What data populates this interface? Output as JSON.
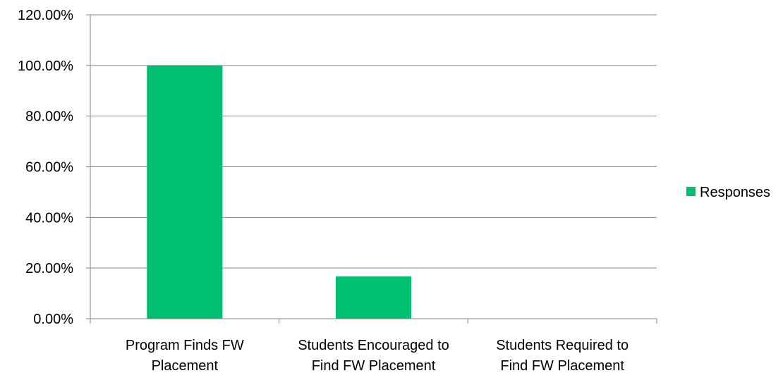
{
  "chart_data": {
    "type": "bar",
    "categories": [
      [
        "Program Finds FW",
        "Placement"
      ],
      [
        "Students Encouraged to",
        "Find FW Placement"
      ],
      [
        "Students Required to",
        "Find FW Placement"
      ]
    ],
    "series": [
      {
        "name": "Responses",
        "values": [
          100.0,
          16.67,
          0.0
        ],
        "color": "#00bf6f"
      }
    ],
    "y_ticks": [
      0,
      20,
      40,
      60,
      80,
      100,
      120
    ],
    "y_tick_labels": [
      "0.00%",
      "20.00%",
      "40.00%",
      "60.00%",
      "80.00%",
      "100.00%",
      "120.00%"
    ],
    "ylim": [
      0,
      120
    ],
    "grid": true,
    "legend_position": "right",
    "title": "",
    "xlabel": "",
    "ylabel": ""
  }
}
